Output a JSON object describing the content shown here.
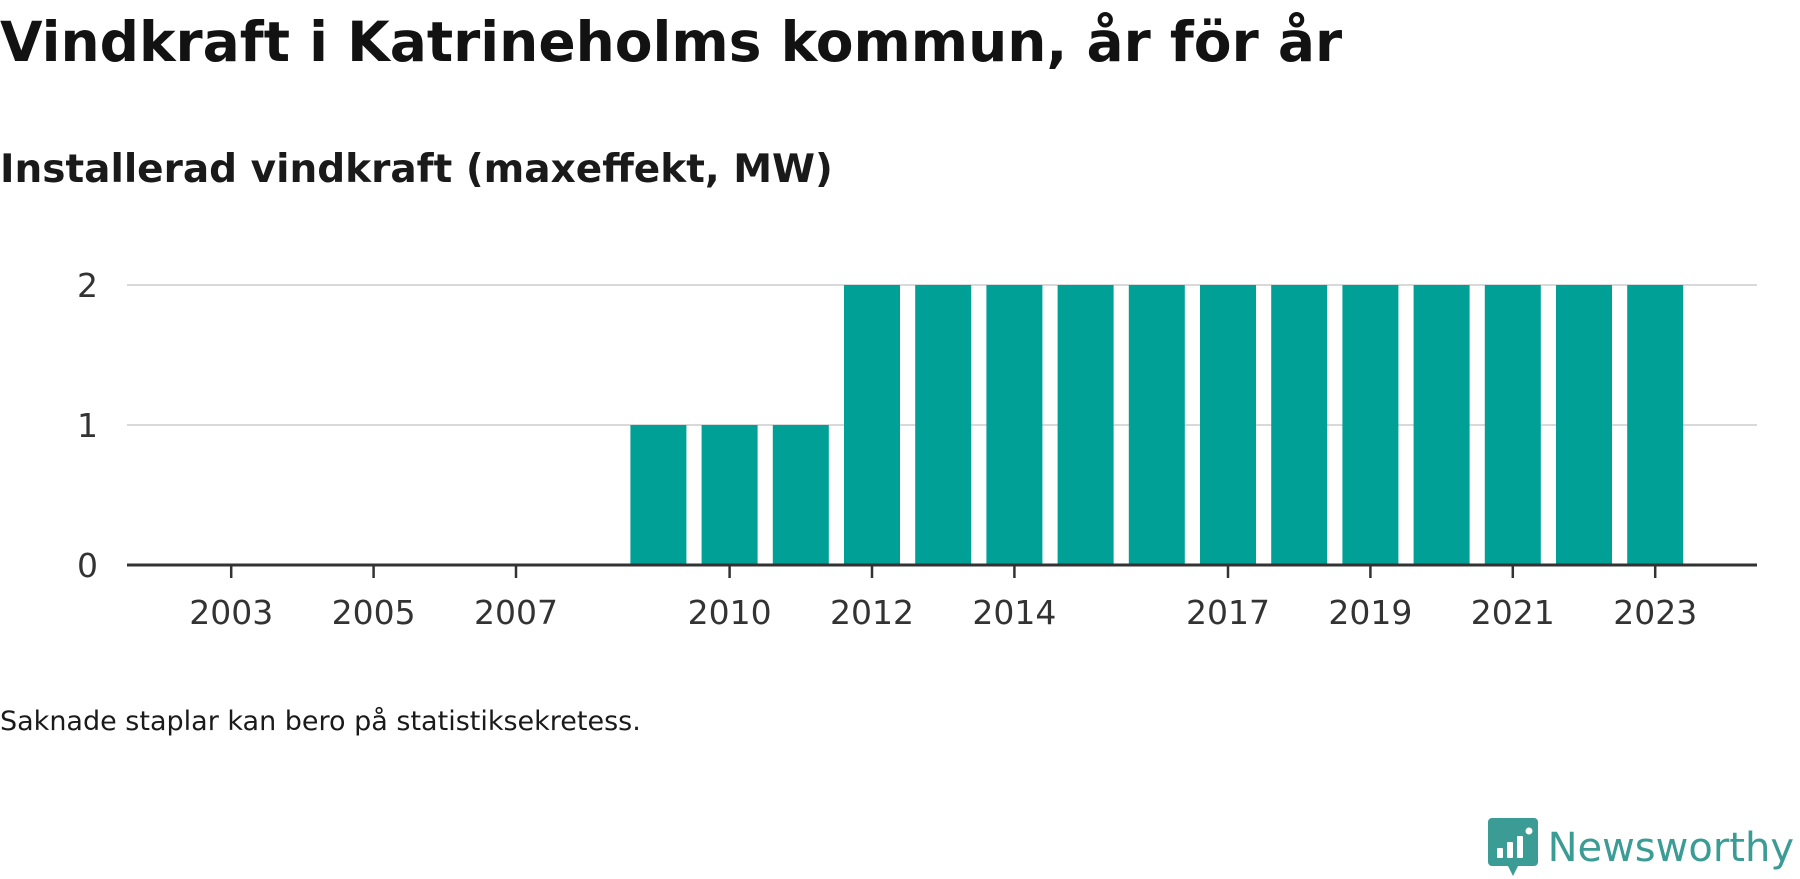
{
  "title": "Vindkraft i Katrineholms kommun, år för år",
  "subtitle": "Installerad vindkraft (maxeffekt, MW)",
  "note": "Saknade staplar kan bero på statistiksekretess.",
  "brand": {
    "name": "Newsworthy",
    "icon": "newsworthy-logo-icon",
    "color": "#3a9c95"
  },
  "chart_data": {
    "type": "bar",
    "categories": [
      "2002",
      "2003",
      "2004",
      "2005",
      "2006",
      "2007",
      "2008",
      "2009",
      "2010",
      "2011",
      "2012",
      "2013",
      "2014",
      "2015",
      "2016",
      "2017",
      "2018",
      "2019",
      "2020",
      "2021",
      "2022",
      "2023"
    ],
    "values": [
      null,
      null,
      null,
      null,
      null,
      null,
      null,
      1,
      1,
      1,
      2,
      2,
      2,
      2,
      2,
      2,
      2,
      2,
      2,
      2,
      2,
      2
    ],
    "x_ticks": [
      "2003",
      "2005",
      "2007",
      "2010",
      "2012",
      "2014",
      "2017",
      "2019",
      "2021",
      "2023"
    ],
    "y_ticks": [
      0,
      1,
      2
    ],
    "ylim": [
      0,
      2
    ],
    "bar_color": "#00a096",
    "grid": true
  }
}
